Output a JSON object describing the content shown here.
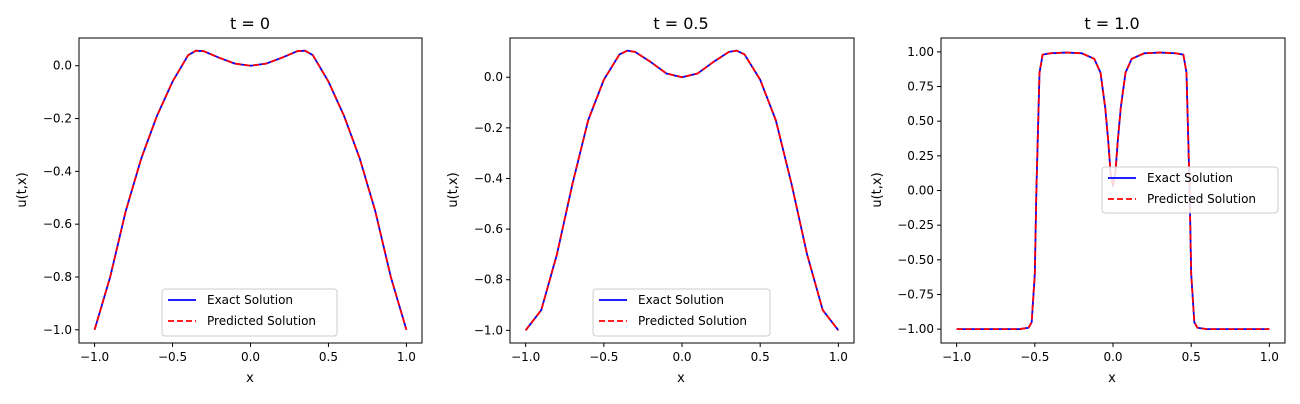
{
  "chart_data": [
    {
      "type": "line",
      "title": "t = 0",
      "xlabel": "x",
      "ylabel": "u(t,x)",
      "xlim": [
        -1.1,
        1.1
      ],
      "ylim": [
        -1.05,
        0.105
      ],
      "xticks": [
        -1.0,
        -0.5,
        0.0,
        0.5,
        1.0
      ],
      "xtick_labels": [
        "−1.0",
        "−0.5",
        "0.0",
        "0.5",
        "1.0"
      ],
      "yticks": [
        -1.0,
        -0.8,
        -0.6,
        -0.4,
        -0.2,
        0.0
      ],
      "ytick_labels": [
        "−1.0",
        "−0.8",
        "−0.6",
        "−0.4",
        "−0.2",
        "0.0"
      ],
      "grid": false,
      "legend_position": "lower center",
      "series": [
        {
          "name": "Exact Solution",
          "color": "#0000ff",
          "style": "solid",
          "x": [
            -1.0,
            -0.9,
            -0.8,
            -0.7,
            -0.6,
            -0.5,
            -0.4,
            -0.35,
            -0.3,
            -0.2,
            -0.1,
            0.0,
            0.1,
            0.2,
            0.3,
            0.35,
            0.4,
            0.5,
            0.6,
            0.7,
            0.8,
            0.9,
            1.0
          ],
          "y": [
            -1.0,
            -0.8,
            -0.55,
            -0.35,
            -0.19,
            -0.06,
            0.04,
            0.057,
            0.055,
            0.03,
            0.008,
            0.0,
            0.008,
            0.03,
            0.055,
            0.057,
            0.04,
            -0.06,
            -0.19,
            -0.35,
            -0.55,
            -0.8,
            -1.0
          ]
        },
        {
          "name": "Predicted Solution",
          "color": "#ff0000",
          "style": "dashed",
          "x": [
            -1.0,
            -0.9,
            -0.8,
            -0.7,
            -0.6,
            -0.5,
            -0.4,
            -0.35,
            -0.3,
            -0.2,
            -0.1,
            0.0,
            0.1,
            0.2,
            0.3,
            0.35,
            0.4,
            0.5,
            0.6,
            0.7,
            0.8,
            0.9,
            1.0
          ],
          "y": [
            -1.0,
            -0.8,
            -0.55,
            -0.35,
            -0.19,
            -0.06,
            0.04,
            0.057,
            0.055,
            0.03,
            0.008,
            0.0,
            0.008,
            0.03,
            0.055,
            0.057,
            0.04,
            -0.06,
            -0.19,
            -0.35,
            -0.55,
            -0.8,
            -1.0
          ]
        }
      ]
    },
    {
      "type": "line",
      "title": "t = 0.5",
      "xlabel": "x",
      "ylabel": "u(t,x)",
      "xlim": [
        -1.1,
        1.1
      ],
      "ylim": [
        -1.05,
        0.155
      ],
      "xticks": [
        -1.0,
        -0.5,
        0.0,
        0.5,
        1.0
      ],
      "xtick_labels": [
        "−1.0",
        "−0.5",
        "0.0",
        "0.5",
        "1.0"
      ],
      "yticks": [
        -1.0,
        -0.8,
        -0.6,
        -0.4,
        -0.2,
        0.0
      ],
      "ytick_labels": [
        "−1.0",
        "−0.8",
        "−0.6",
        "−0.4",
        "−0.2",
        "0.0"
      ],
      "grid": false,
      "legend_position": "lower center",
      "series": [
        {
          "name": "Exact Solution",
          "color": "#0000ff",
          "style": "solid",
          "x": [
            -1.0,
            -0.9,
            -0.8,
            -0.7,
            -0.6,
            -0.5,
            -0.4,
            -0.35,
            -0.3,
            -0.2,
            -0.1,
            0.0,
            0.1,
            0.2,
            0.3,
            0.35,
            0.4,
            0.5,
            0.6,
            0.7,
            0.8,
            0.9,
            1.0
          ],
          "y": [
            -1.0,
            -0.92,
            -0.7,
            -0.42,
            -0.17,
            -0.01,
            0.09,
            0.105,
            0.1,
            0.06,
            0.015,
            0.0,
            0.015,
            0.06,
            0.1,
            0.105,
            0.09,
            -0.01,
            -0.17,
            -0.42,
            -0.7,
            -0.92,
            -1.0
          ]
        },
        {
          "name": "Predicted Solution",
          "color": "#ff0000",
          "style": "dashed",
          "x": [
            -1.0,
            -0.9,
            -0.8,
            -0.7,
            -0.6,
            -0.5,
            -0.4,
            -0.35,
            -0.3,
            -0.2,
            -0.1,
            0.0,
            0.1,
            0.2,
            0.3,
            0.35,
            0.4,
            0.5,
            0.6,
            0.7,
            0.8,
            0.9,
            1.0
          ],
          "y": [
            -1.0,
            -0.92,
            -0.7,
            -0.42,
            -0.17,
            -0.01,
            0.09,
            0.105,
            0.1,
            0.06,
            0.015,
            0.0,
            0.015,
            0.06,
            0.1,
            0.105,
            0.09,
            -0.01,
            -0.17,
            -0.42,
            -0.7,
            -0.92,
            -1.0
          ]
        }
      ]
    },
    {
      "type": "line",
      "title": "t = 1.0",
      "xlabel": "x",
      "ylabel": "u(t,x)",
      "xlim": [
        -1.1,
        1.1
      ],
      "ylim": [
        -1.1,
        1.1
      ],
      "xticks": [
        -1.0,
        -0.5,
        0.0,
        0.5,
        1.0
      ],
      "xtick_labels": [
        "−1.0",
        "−0.5",
        "0.0",
        "0.5",
        "1.0"
      ],
      "yticks": [
        -1.0,
        -0.75,
        -0.5,
        -0.25,
        0.0,
        0.25,
        0.5,
        0.75,
        1.0
      ],
      "ytick_labels": [
        "−1.00",
        "−0.75",
        "−0.50",
        "−0.25",
        "0.00",
        "0.25",
        "0.50",
        "0.75",
        "1.00"
      ],
      "grid": false,
      "legend_position": "center right",
      "series": [
        {
          "name": "Exact Solution",
          "color": "#0000ff",
          "style": "solid",
          "x": [
            -1.0,
            -0.6,
            -0.54,
            -0.52,
            -0.5,
            -0.49,
            -0.47,
            -0.45,
            -0.4,
            -0.3,
            -0.2,
            -0.12,
            -0.08,
            -0.05,
            -0.03,
            -0.015,
            0.0,
            0.015,
            0.03,
            0.05,
            0.08,
            0.12,
            0.2,
            0.3,
            0.4,
            0.45,
            0.47,
            0.49,
            0.5,
            0.52,
            0.54,
            0.6,
            1.0
          ],
          "y": [
            -1.0,
            -1.0,
            -0.99,
            -0.95,
            -0.6,
            0.0,
            0.85,
            0.98,
            0.99,
            0.995,
            0.99,
            0.95,
            0.85,
            0.6,
            0.35,
            0.12,
            0.03,
            0.12,
            0.35,
            0.6,
            0.85,
            0.95,
            0.99,
            0.995,
            0.99,
            0.98,
            0.85,
            0.0,
            -0.6,
            -0.95,
            -0.99,
            -1.0,
            -1.0
          ]
        },
        {
          "name": "Predicted Solution",
          "color": "#ff0000",
          "style": "dashed",
          "x": [
            -1.0,
            -0.6,
            -0.54,
            -0.52,
            -0.5,
            -0.49,
            -0.47,
            -0.45,
            -0.4,
            -0.3,
            -0.2,
            -0.12,
            -0.08,
            -0.05,
            -0.03,
            -0.015,
            0.0,
            0.015,
            0.03,
            0.05,
            0.08,
            0.12,
            0.2,
            0.3,
            0.4,
            0.45,
            0.47,
            0.49,
            0.5,
            0.52,
            0.54,
            0.6,
            1.0
          ],
          "y": [
            -1.0,
            -1.0,
            -0.99,
            -0.95,
            -0.6,
            0.0,
            0.85,
            0.98,
            0.99,
            0.995,
            0.99,
            0.95,
            0.85,
            0.6,
            0.35,
            0.12,
            0.03,
            0.12,
            0.35,
            0.6,
            0.85,
            0.95,
            0.99,
            0.995,
            0.99,
            0.98,
            0.85,
            0.0,
            -0.6,
            -0.95,
            -0.99,
            -1.0,
            -1.0
          ]
        }
      ]
    }
  ]
}
